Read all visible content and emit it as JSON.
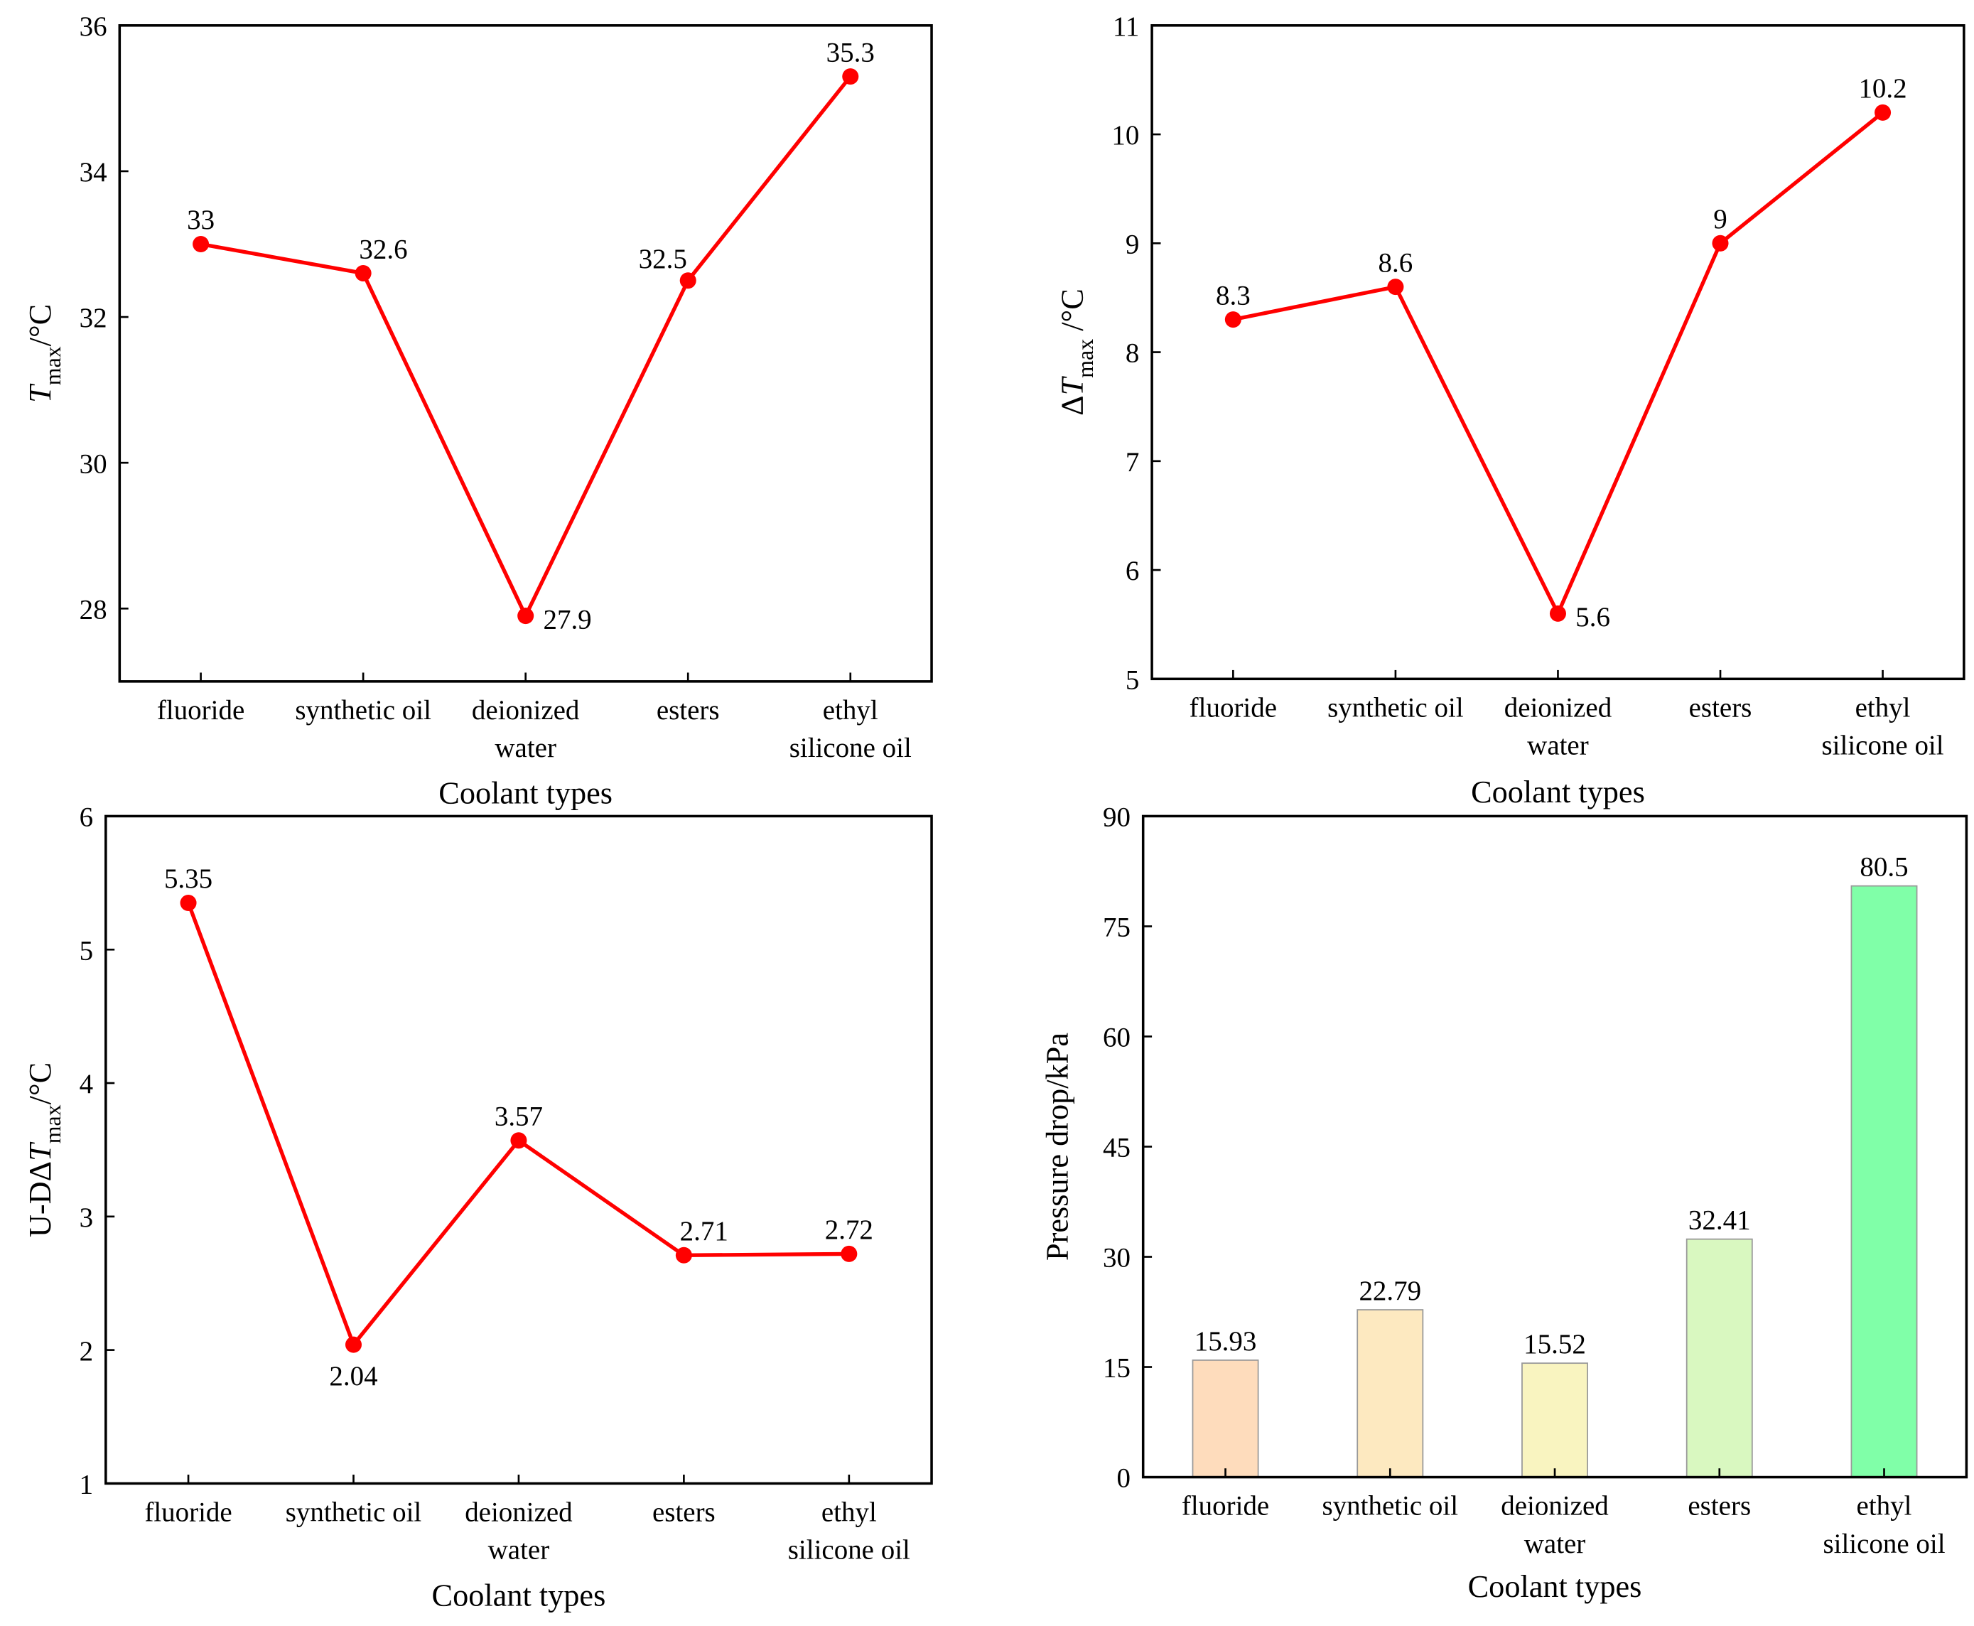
{
  "chart_data": [
    {
      "type": "line",
      "title": "",
      "xlabel": "Coolant types",
      "ylabel": {
        "main": "T",
        "sub": "max",
        "unit": "/°C"
      },
      "categories": [
        [
          "fluoride"
        ],
        [
          "synthetic oil"
        ],
        [
          "deionized",
          "water"
        ],
        [
          "esters"
        ],
        [
          "ethyl",
          "silicone oil"
        ]
      ],
      "values": [
        33,
        32.6,
        27.9,
        32.5,
        35.3
      ],
      "data_labels": [
        "33",
        "32.6",
        "27.9",
        "32.5",
        "35.3"
      ],
      "label_pos": [
        "above",
        "above-right",
        "right",
        "above-left",
        "above"
      ],
      "ylim": [
        27,
        36
      ],
      "yticks": [
        28,
        30,
        32,
        34,
        36
      ],
      "color": "#ff0000"
    },
    {
      "type": "line",
      "title": "",
      "xlabel": "Coolant types",
      "ylabel": {
        "prefix": "Δ",
        "main": "T",
        "sub": "max",
        "unit": " /°C"
      },
      "categories": [
        [
          "fluoride"
        ],
        [
          "synthetic oil"
        ],
        [
          "deionized",
          "water"
        ],
        [
          "esters"
        ],
        [
          "ethyl",
          "silicone oil"
        ]
      ],
      "values": [
        8.3,
        8.6,
        5.6,
        9,
        10.2
      ],
      "data_labels": [
        "8.3",
        "8.6",
        "5.6",
        "9",
        "10.2"
      ],
      "label_pos": [
        "above",
        "above",
        "right",
        "above",
        "above"
      ],
      "ylim": [
        5,
        11
      ],
      "yticks": [
        5,
        6,
        7,
        8,
        9,
        10,
        11
      ],
      "color": "#ff0000"
    },
    {
      "type": "line",
      "title": "",
      "xlabel": "Coolant types",
      "ylabel": {
        "prefix": "U-DΔ",
        "main": "T",
        "sub": "max",
        "unit": "/°C"
      },
      "categories": [
        [
          "fluoride"
        ],
        [
          "synthetic oil"
        ],
        [
          "deionized",
          "water"
        ],
        [
          "esters"
        ],
        [
          "ethyl",
          "silicone oil"
        ]
      ],
      "values": [
        5.35,
        2.04,
        3.57,
        2.71,
        2.72
      ],
      "data_labels": [
        "5.35",
        "2.04",
        "3.57",
        "2.71",
        "2.72"
      ],
      "label_pos": [
        "above",
        "below",
        "above",
        "above-right",
        "above"
      ],
      "ylim": [
        1,
        6
      ],
      "yticks": [
        1,
        2,
        3,
        4,
        5,
        6
      ],
      "color": "#ff0000"
    },
    {
      "type": "bar",
      "title": "",
      "xlabel": "Coolant types",
      "ylabel": {
        "main": "Pressure drop/kPa"
      },
      "categories": [
        [
          "fluoride"
        ],
        [
          "synthetic oil"
        ],
        [
          "deionized",
          "water"
        ],
        [
          "esters"
        ],
        [
          "ethyl",
          "silicone oil"
        ]
      ],
      "values": [
        15.93,
        22.79,
        15.52,
        32.41,
        80.5
      ],
      "data_labels": [
        "15.93",
        "22.79",
        "15.52",
        "32.41",
        "80.5"
      ],
      "label_pos": [
        "above",
        "above",
        "above",
        "above",
        "above"
      ],
      "ylim": [
        0,
        90
      ],
      "yticks": [
        0,
        15,
        30,
        45,
        60,
        75,
        90
      ],
      "bar_colors": [
        "#fedcbc",
        "#fde9c0",
        "#f9f4c0",
        "#d9f8c0",
        "#80ffa8"
      ]
    }
  ]
}
